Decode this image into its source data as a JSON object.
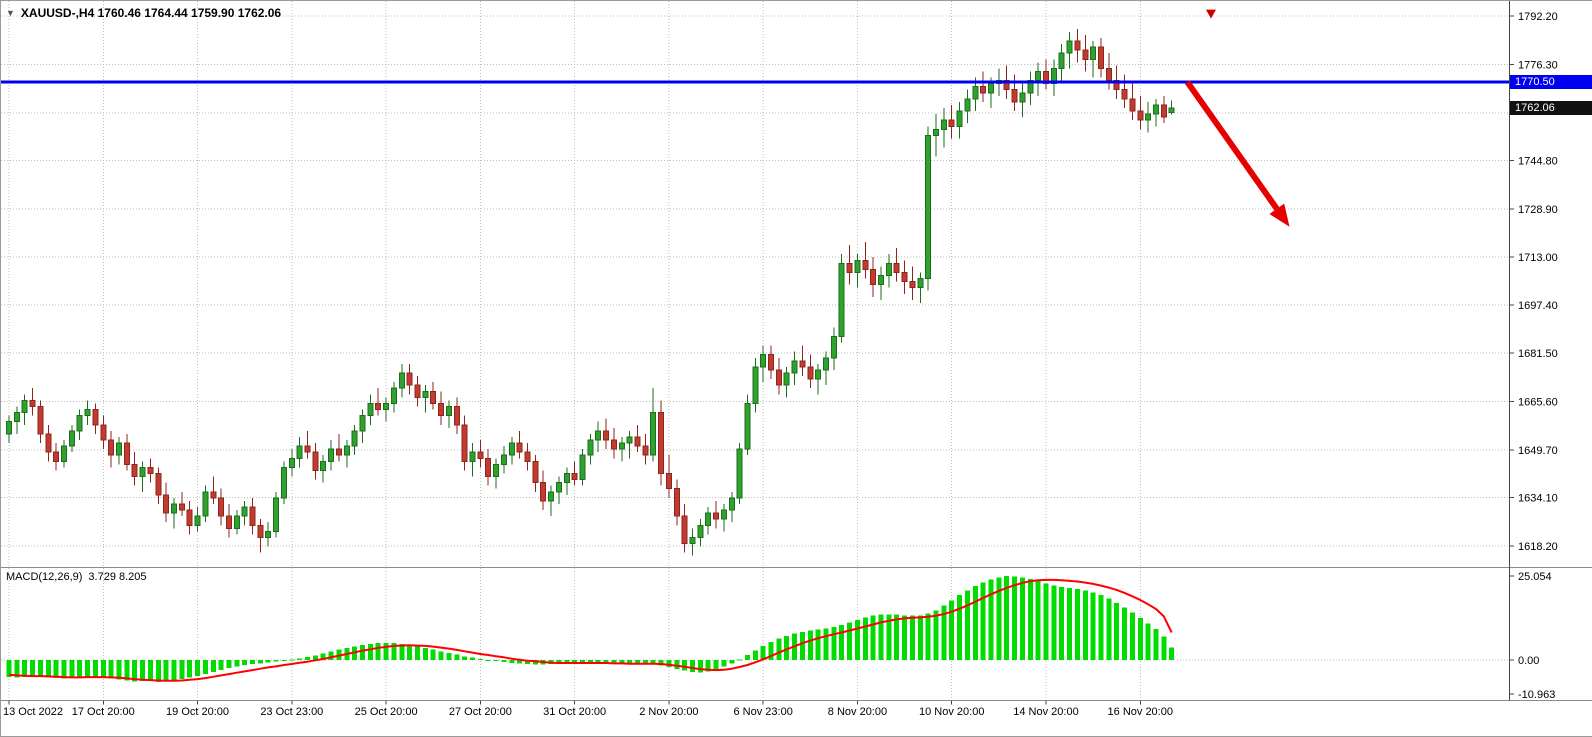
{
  "window": {
    "symbol_dropdown_icon": "▼",
    "symbol_info": "XAUUSD-,H4 1760.46 1764.44 1759.90 1762.06"
  },
  "indicator": {
    "name": "MACD(12,26,9)",
    "values": "3.729 8.205"
  },
  "price_axis": {
    "labels": [
      "1792.20",
      "1776.30",
      "1744.80",
      "1728.90",
      "1713.00",
      "1697.40",
      "1681.50",
      "1665.60",
      "1649.70",
      "1634.10",
      "1618.20"
    ],
    "hline_tag": "1770.50",
    "current_price_tag": "1762.06"
  },
  "macd_axis": {
    "labels": [
      "25.054",
      "0.00",
      "-10.963"
    ]
  },
  "time_axis": {
    "labels": [
      "13 Oct 2022",
      "17 Oct 20:00",
      "19 Oct 20:00",
      "23 Oct 23:00",
      "25 Oct 20:00",
      "27 Oct 20:00",
      "31 Oct 20:00",
      "2 Nov 20:00",
      "6 Nov 23:00",
      "8 Nov 20:00",
      "10 Nov 20:00",
      "14 Nov 20:00",
      "16 Nov 20:00"
    ]
  },
  "colors": {
    "up_fill": "#2fa12f",
    "up_stroke": "#1b6e1b",
    "down_fill": "#c23b31",
    "down_stroke": "#8f241c",
    "macd_hist": "#00dc00",
    "macd_signal": "#ff0000",
    "hline": "#0000f0",
    "tag_hline_bg": "#0000f0",
    "tag_current_bg": "#111111",
    "grid": "#bdbdbd",
    "separator": "#8c8c8c",
    "axis_line": "#444444",
    "arrow": "#e60000",
    "marker": "#cc0000",
    "dropdown": "#555555"
  },
  "chart_data": {
    "type": "candlestick",
    "symbol": "XAUUSD-",
    "timeframe": "H4",
    "title": "XAUUSD- H4 with MACD(12,26,9) and horizontal line 1770.50, bearish arrow annotation",
    "price_range": {
      "top": 1792.2,
      "bottom": 1618.2
    },
    "price_gridlines": [
      1792.2,
      1776.3,
      1760.4,
      1744.8,
      1728.9,
      1713.0,
      1697.4,
      1681.5,
      1665.6,
      1649.7,
      1634.1,
      1618.2
    ],
    "x_label_indices": [
      0,
      12,
      24,
      36,
      48,
      60,
      72,
      84,
      96,
      108,
      120,
      132,
      144
    ],
    "horizontal_line": 1770.5,
    "last_price": 1762.06,
    "ohlc": [
      [
        1655,
        1661,
        1652,
        1659
      ],
      [
        1659,
        1664,
        1655,
        1662
      ],
      [
        1662,
        1668,
        1658,
        1666
      ],
      [
        1666,
        1670,
        1661,
        1664
      ],
      [
        1664,
        1666,
        1652,
        1655
      ],
      [
        1655,
        1658,
        1646,
        1649
      ],
      [
        1649,
        1652,
        1643,
        1646
      ],
      [
        1646,
        1653,
        1644,
        1651
      ],
      [
        1651,
        1658,
        1649,
        1656
      ],
      [
        1656,
        1663,
        1653,
        1661
      ],
      [
        1661,
        1666,
        1658,
        1663
      ],
      [
        1663,
        1665,
        1655,
        1658
      ],
      [
        1658,
        1661,
        1650,
        1653
      ],
      [
        1653,
        1656,
        1644,
        1648
      ],
      [
        1648,
        1654,
        1645,
        1652
      ],
      [
        1652,
        1655,
        1643,
        1645
      ],
      [
        1645,
        1649,
        1638,
        1641
      ],
      [
        1641,
        1646,
        1636,
        1644
      ],
      [
        1644,
        1647,
        1639,
        1642
      ],
      [
        1642,
        1644,
        1632,
        1635
      ],
      [
        1635,
        1639,
        1626,
        1629
      ],
      [
        1629,
        1634,
        1624,
        1632
      ],
      [
        1632,
        1636,
        1628,
        1630
      ],
      [
        1630,
        1633,
        1622,
        1625
      ],
      [
        1625,
        1631,
        1623,
        1628
      ],
      [
        1628,
        1638,
        1626,
        1636
      ],
      [
        1636,
        1641,
        1632,
        1634
      ],
      [
        1634,
        1637,
        1625,
        1628
      ],
      [
        1628,
        1632,
        1621,
        1624
      ],
      [
        1624,
        1630,
        1622,
        1628
      ],
      [
        1628,
        1633,
        1625,
        1631
      ],
      [
        1631,
        1634,
        1622,
        1625
      ],
      [
        1625,
        1627,
        1616,
        1621
      ],
      [
        1621,
        1626,
        1618,
        1623
      ],
      [
        1623,
        1636,
        1621,
        1634
      ],
      [
        1634,
        1646,
        1632,
        1644
      ],
      [
        1644,
        1650,
        1641,
        1647
      ],
      [
        1647,
        1654,
        1644,
        1651
      ],
      [
        1651,
        1656,
        1647,
        1649
      ],
      [
        1649,
        1652,
        1640,
        1643
      ],
      [
        1643,
        1648,
        1639,
        1646
      ],
      [
        1646,
        1653,
        1643,
        1650
      ],
      [
        1650,
        1655,
        1646,
        1648
      ],
      [
        1648,
        1653,
        1644,
        1651
      ],
      [
        1651,
        1658,
        1648,
        1656
      ],
      [
        1656,
        1663,
        1652,
        1661
      ],
      [
        1661,
        1668,
        1658,
        1665
      ],
      [
        1665,
        1670,
        1661,
        1663
      ],
      [
        1663,
        1667,
        1659,
        1665
      ],
      [
        1665,
        1672,
        1662,
        1670
      ],
      [
        1670,
        1678,
        1667,
        1675
      ],
      [
        1675,
        1678,
        1668,
        1671
      ],
      [
        1671,
        1674,
        1664,
        1667
      ],
      [
        1667,
        1671,
        1662,
        1669
      ],
      [
        1669,
        1672,
        1663,
        1665
      ],
      [
        1665,
        1669,
        1658,
        1661
      ],
      [
        1661,
        1666,
        1657,
        1664
      ],
      [
        1664,
        1667,
        1655,
        1658
      ],
      [
        1658,
        1661,
        1643,
        1646
      ],
      [
        1646,
        1652,
        1641,
        1649
      ],
      [
        1649,
        1653,
        1644,
        1647
      ],
      [
        1647,
        1650,
        1638,
        1641
      ],
      [
        1641,
        1647,
        1637,
        1645
      ],
      [
        1645,
        1651,
        1642,
        1648
      ],
      [
        1648,
        1654,
        1645,
        1652
      ],
      [
        1652,
        1656,
        1647,
        1649
      ],
      [
        1649,
        1652,
        1643,
        1646
      ],
      [
        1646,
        1648,
        1636,
        1639
      ],
      [
        1639,
        1643,
        1630,
        1633
      ],
      [
        1633,
        1638,
        1628,
        1636
      ],
      [
        1636,
        1641,
        1632,
        1639
      ],
      [
        1639,
        1644,
        1635,
        1642
      ],
      [
        1642,
        1646,
        1638,
        1640
      ],
      [
        1640,
        1650,
        1638,
        1648
      ],
      [
        1648,
        1655,
        1645,
        1653
      ],
      [
        1653,
        1659,
        1649,
        1656
      ],
      [
        1656,
        1660,
        1650,
        1653
      ],
      [
        1653,
        1657,
        1647,
        1650
      ],
      [
        1650,
        1654,
        1646,
        1652
      ],
      [
        1652,
        1656,
        1647,
        1654
      ],
      [
        1654,
        1658,
        1649,
        1651
      ],
      [
        1651,
        1655,
        1645,
        1648
      ],
      [
        1648,
        1670,
        1646,
        1662
      ],
      [
        1662,
        1666,
        1638,
        1642
      ],
      [
        1642,
        1648,
        1634,
        1637
      ],
      [
        1637,
        1640,
        1625,
        1628
      ],
      [
        1628,
        1632,
        1616,
        1619
      ],
      [
        1619,
        1624,
        1615,
        1621
      ],
      [
        1621,
        1627,
        1618,
        1625
      ],
      [
        1625,
        1631,
        1622,
        1629
      ],
      [
        1629,
        1633,
        1624,
        1627
      ],
      [
        1627,
        1632,
        1623,
        1630
      ],
      [
        1630,
        1636,
        1626,
        1634
      ],
      [
        1634,
        1652,
        1632,
        1650
      ],
      [
        1650,
        1668,
        1648,
        1665
      ],
      [
        1665,
        1680,
        1662,
        1677
      ],
      [
        1677,
        1684,
        1672,
        1681
      ],
      [
        1681,
        1684,
        1673,
        1676
      ],
      [
        1676,
        1680,
        1668,
        1671
      ],
      [
        1671,
        1677,
        1667,
        1675
      ],
      [
        1675,
        1682,
        1671,
        1679
      ],
      [
        1679,
        1684,
        1674,
        1677
      ],
      [
        1677,
        1681,
        1670,
        1673
      ],
      [
        1673,
        1678,
        1668,
        1676
      ],
      [
        1676,
        1682,
        1671,
        1680
      ],
      [
        1680,
        1690,
        1676,
        1687
      ],
      [
        1687,
        1714,
        1685,
        1711
      ],
      [
        1711,
        1717,
        1704,
        1708
      ],
      [
        1708,
        1714,
        1703,
        1712
      ],
      [
        1712,
        1718,
        1706,
        1709
      ],
      [
        1709,
        1713,
        1700,
        1704
      ],
      [
        1704,
        1710,
        1699,
        1707
      ],
      [
        1707,
        1714,
        1703,
        1711
      ],
      [
        1711,
        1716,
        1705,
        1708
      ],
      [
        1708,
        1712,
        1701,
        1705
      ],
      [
        1705,
        1710,
        1699,
        1703
      ],
      [
        1703,
        1708,
        1698,
        1706
      ],
      [
        1706,
        1756,
        1702,
        1753
      ],
      [
        1753,
        1760,
        1746,
        1755
      ],
      [
        1755,
        1762,
        1749,
        1758
      ],
      [
        1758,
        1763,
        1752,
        1756
      ],
      [
        1756,
        1764,
        1752,
        1761
      ],
      [
        1761,
        1768,
        1757,
        1765
      ],
      [
        1765,
        1772,
        1761,
        1769
      ],
      [
        1769,
        1774,
        1764,
        1767
      ],
      [
        1767,
        1772,
        1762,
        1770
      ],
      [
        1770,
        1775,
        1766,
        1771
      ],
      [
        1771,
        1776,
        1765,
        1768
      ],
      [
        1768,
        1773,
        1761,
        1764
      ],
      [
        1764,
        1770,
        1759,
        1767
      ],
      [
        1767,
        1774,
        1763,
        1771
      ],
      [
        1771,
        1777,
        1766,
        1774
      ],
      [
        1774,
        1778,
        1768,
        1770
      ],
      [
        1770,
        1778,
        1766,
        1775
      ],
      [
        1775,
        1783,
        1771,
        1780
      ],
      [
        1780,
        1787,
        1775,
        1784
      ],
      [
        1784,
        1788,
        1777,
        1781
      ],
      [
        1781,
        1786,
        1774,
        1778
      ],
      [
        1778,
        1784,
        1772,
        1782
      ],
      [
        1782,
        1785,
        1772,
        1775
      ],
      [
        1775,
        1780,
        1768,
        1771
      ],
      [
        1771,
        1776,
        1765,
        1768
      ],
      [
        1768,
        1773,
        1762,
        1765
      ],
      [
        1765,
        1770,
        1758,
        1761
      ],
      [
        1761,
        1766,
        1755,
        1758
      ],
      [
        1758,
        1764,
        1754,
        1760
      ],
      [
        1760,
        1765,
        1756,
        1763
      ],
      [
        1763,
        1766,
        1757,
        1759
      ],
      [
        1760.46,
        1764.44,
        1759.9,
        1762.06
      ]
    ],
    "macd": {
      "max": 25.054,
      "min": -10.963,
      "histogram": [
        -5.0,
        -5.2,
        -5.0,
        -4.8,
        -5.0,
        -5.2,
        -5.4,
        -5.5,
        -5.3,
        -5.1,
        -5.0,
        -5.1,
        -5.3,
        -5.5,
        -5.8,
        -6.1,
        -6.4,
        -6.2,
        -6.3,
        -6.5,
        -6.4,
        -6.0,
        -5.6,
        -5.2,
        -4.8,
        -4.2,
        -3.6,
        -3.0,
        -2.4,
        -1.9,
        -1.5,
        -1.2,
        -1.0,
        -0.7,
        -0.4,
        -0.1,
        0.2,
        0.5,
        0.9,
        1.4,
        1.9,
        2.5,
        3.1,
        3.6,
        4.1,
        4.5,
        4.8,
        5.0,
        5.1,
        5.0,
        4.8,
        4.5,
        4.1,
        3.6,
        3.1,
        2.6,
        2.1,
        1.6,
        1.1,
        0.7,
        0.3,
        0.0,
        -0.3,
        -0.6,
        -0.9,
        -1.1,
        -1.2,
        -1.3,
        -1.3,
        -1.2,
        -1.1,
        -1.0,
        -0.9,
        -0.8,
        -0.8,
        -0.9,
        -1.0,
        -1.1,
        -1.2,
        -1.2,
        -1.1,
        -1.0,
        -1.2,
        -1.6,
        -2.1,
        -2.7,
        -3.2,
        -3.6,
        -3.7,
        -3.4,
        -2.8,
        -2.0,
        -1.0,
        0.2,
        1.5,
        2.9,
        4.2,
        5.4,
        6.4,
        7.2,
        7.9,
        8.4,
        8.8,
        9.1,
        9.4,
        9.8,
        10.4,
        11.2,
        12.0,
        12.7,
        13.2,
        13.5,
        13.6,
        13.5,
        13.3,
        13.2,
        13.3,
        13.8,
        14.8,
        16.2,
        17.8,
        19.4,
        20.8,
        22.0,
        23.1,
        24.0,
        24.6,
        25.0,
        24.9,
        24.6,
        24.1,
        23.5,
        22.8,
        22.2,
        21.8,
        21.5,
        21.2,
        20.8,
        20.2,
        19.4,
        18.3,
        17.0,
        15.6,
        14.1,
        12.5,
        10.9,
        9.2,
        7.0,
        3.729
      ],
      "signal": [
        -4.4,
        -4.6,
        -4.7,
        -4.8,
        -4.8,
        -4.9,
        -5.0,
        -5.1,
        -5.2,
        -5.2,
        -5.1,
        -5.1,
        -5.1,
        -5.2,
        -5.3,
        -5.5,
        -5.7,
        -5.9,
        -6.0,
        -6.1,
        -6.2,
        -6.2,
        -6.1,
        -5.9,
        -5.7,
        -5.4,
        -5.0,
        -4.6,
        -4.2,
        -3.8,
        -3.4,
        -3.0,
        -2.6,
        -2.2,
        -1.9,
        -1.5,
        -1.2,
        -0.8,
        -0.5,
        -0.1,
        0.3,
        0.8,
        1.3,
        1.8,
        2.3,
        2.8,
        3.2,
        3.6,
        3.9,
        4.2,
        4.3,
        4.4,
        4.3,
        4.2,
        4.0,
        3.7,
        3.4,
        3.0,
        2.6,
        2.2,
        1.8,
        1.5,
        1.1,
        0.8,
        0.4,
        0.1,
        -0.2,
        -0.4,
        -0.6,
        -0.8,
        -0.9,
        -0.9,
        -0.9,
        -0.9,
        -0.9,
        -0.9,
        -0.9,
        -1.0,
        -1.0,
        -1.1,
        -1.1,
        -1.1,
        -1.1,
        -1.2,
        -1.4,
        -1.7,
        -2.0,
        -2.4,
        -2.7,
        -2.9,
        -3.0,
        -2.9,
        -2.6,
        -2.1,
        -1.5,
        -0.7,
        0.2,
        1.2,
        2.2,
        3.2,
        4.1,
        5.0,
        5.8,
        6.5,
        7.1,
        7.7,
        8.2,
        8.8,
        9.4,
        10.0,
        10.6,
        11.2,
        11.7,
        12.1,
        12.4,
        12.6,
        12.7,
        12.9,
        13.2,
        13.7,
        14.4,
        15.3,
        16.3,
        17.4,
        18.5,
        19.6,
        20.6,
        21.5,
        22.3,
        23.0,
        23.5,
        23.8,
        23.9,
        23.9,
        23.8,
        23.6,
        23.4,
        23.1,
        22.7,
        22.2,
        21.6,
        20.9,
        20.0,
        19.0,
        17.9,
        16.6,
        15.2,
        13.0,
        8.205
      ]
    },
    "annotations": [
      {
        "type": "arrow",
        "from": {
          "index": 150,
          "price": 1770.5
        },
        "to": {
          "index": 163,
          "price": 1723
        }
      },
      {
        "type": "marker-triangle",
        "index": 153,
        "price": 1794.3
      }
    ]
  }
}
